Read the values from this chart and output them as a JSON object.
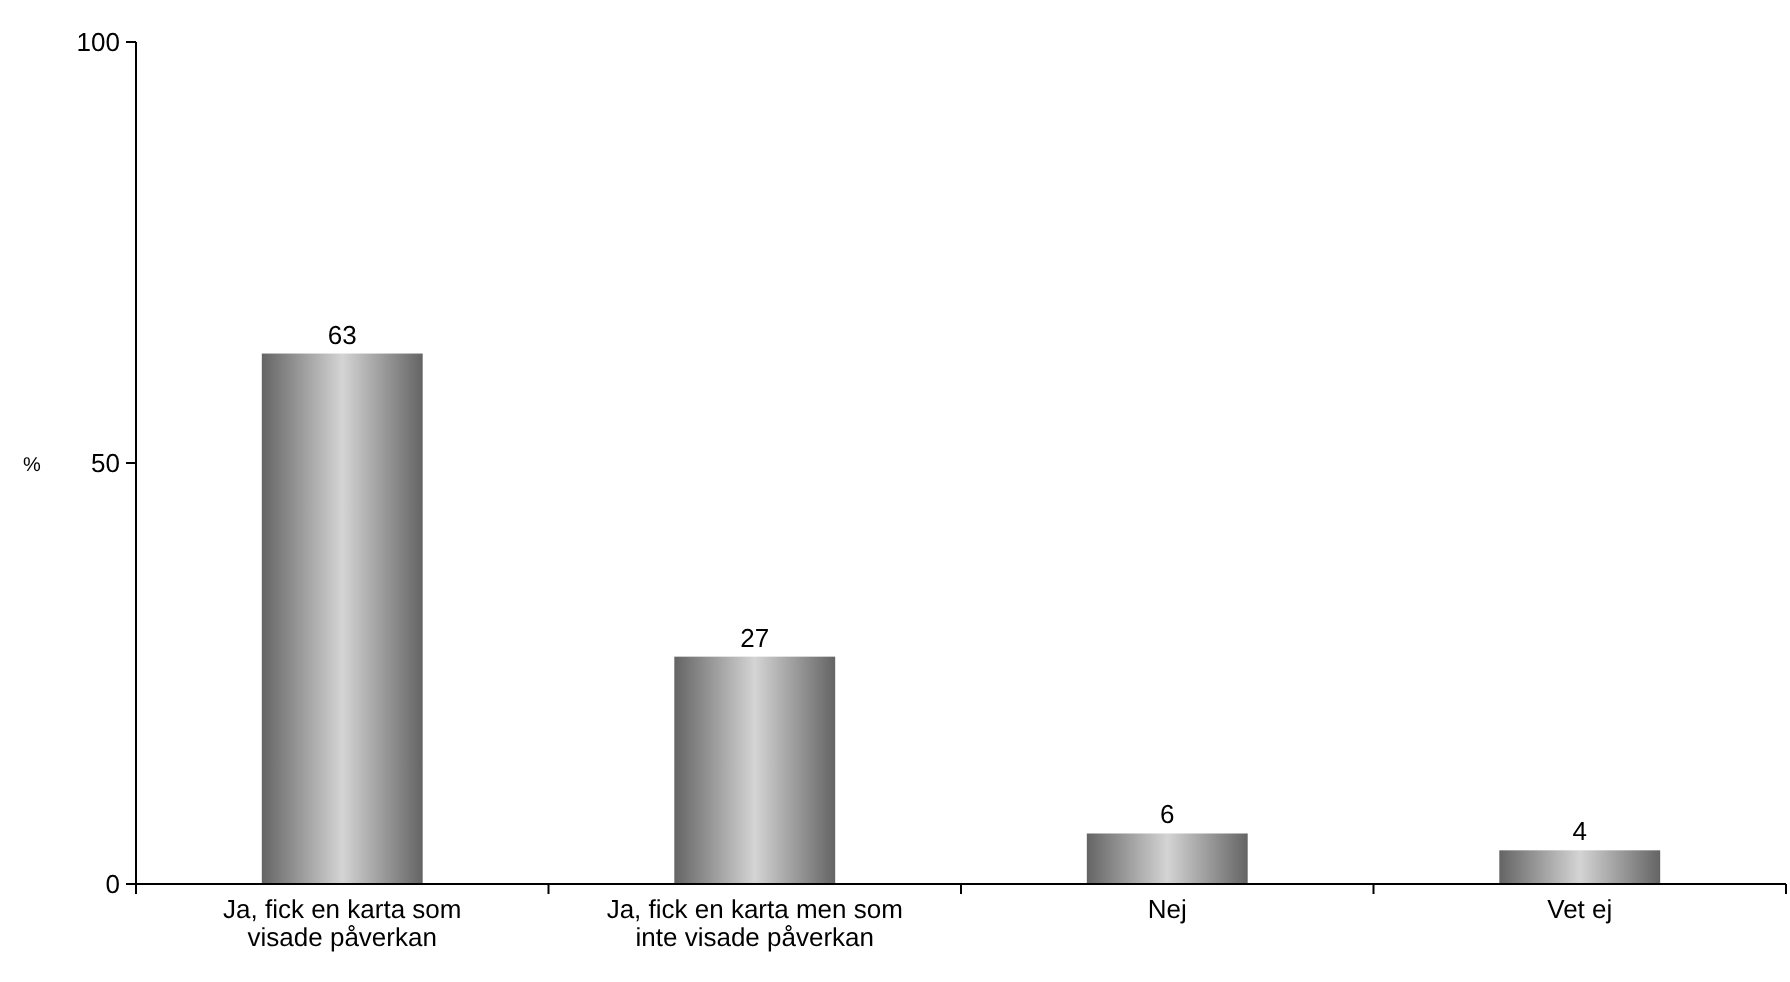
{
  "chart_data": {
    "type": "bar",
    "ylabel": "%",
    "categories": [
      "Ja, fick en karta som visade påverkan",
      "Ja, fick en karta men som inte visade påverkan",
      "Nej",
      "Vet ej"
    ],
    "values": [
      63,
      27,
      6,
      4
    ],
    "color": "#9a9a9a",
    "ylim": [
      0,
      100
    ],
    "yticks": [
      0,
      50,
      100
    ],
    "data_labels": true,
    "grid": false
  }
}
